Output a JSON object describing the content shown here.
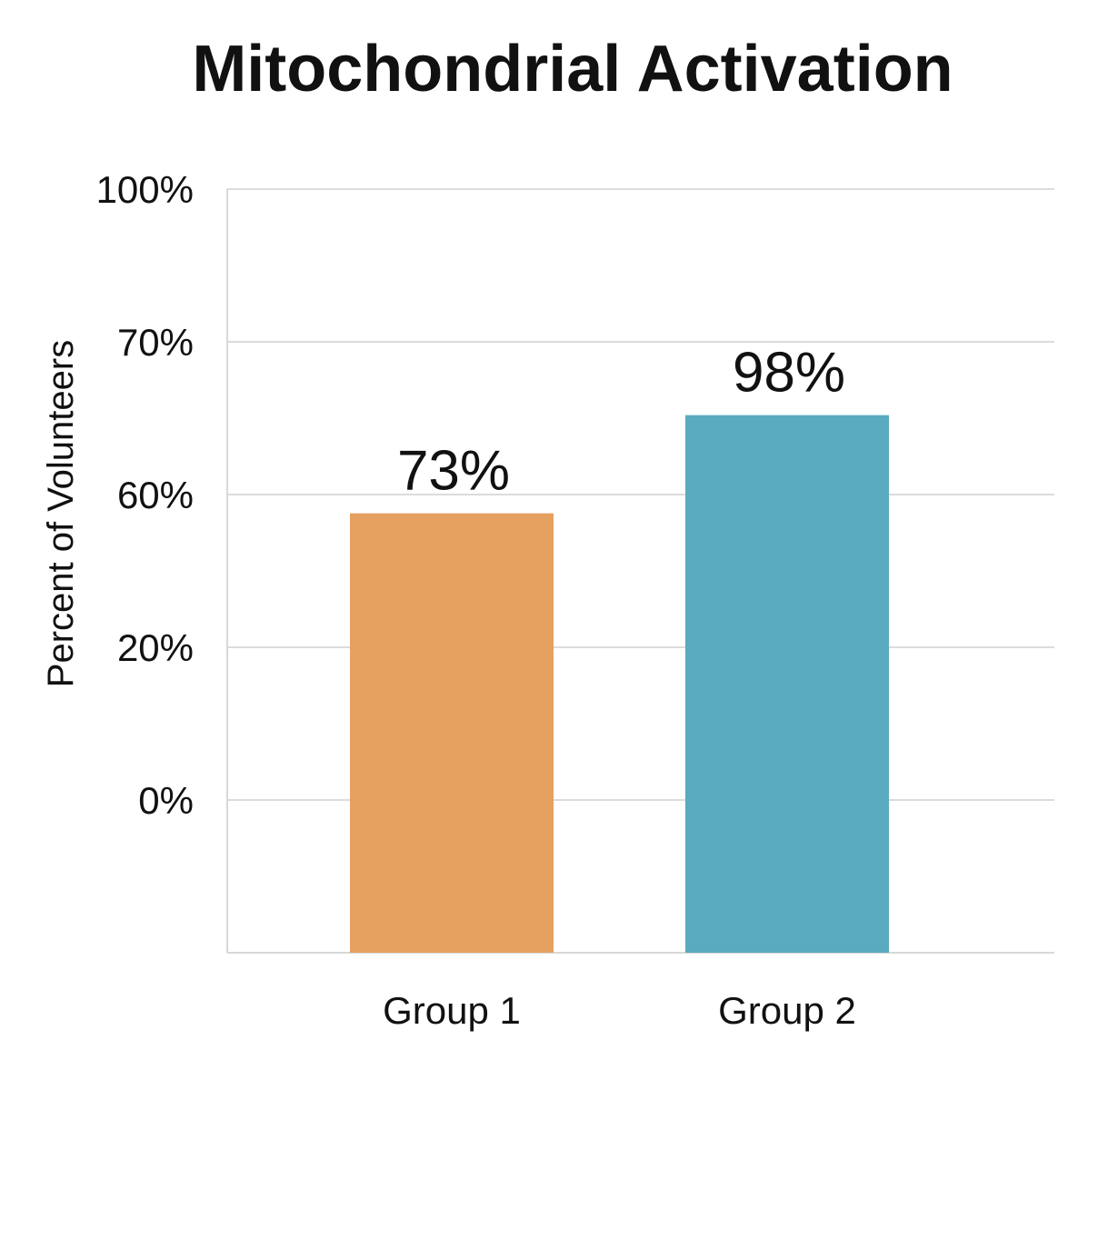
{
  "chart_data": {
    "type": "bar",
    "title": "Mitochondrial Activation",
    "xlabel": "",
    "ylabel": "Percent of Volunteers",
    "categories": [
      "Group 1",
      "Group 2"
    ],
    "series": [
      {
        "values": [
          73,
          98
        ],
        "data_labels": [
          "73%",
          "98%"
        ],
        "colors": [
          "#e6a060",
          "#5aabbf"
        ]
      }
    ],
    "y_ticks": [
      {
        "label": "0%"
      },
      {
        "label": "20%"
      },
      {
        "label": "60%"
      },
      {
        "label": "70%"
      },
      {
        "label": "100%"
      }
    ],
    "grid": true,
    "legend": "none"
  }
}
